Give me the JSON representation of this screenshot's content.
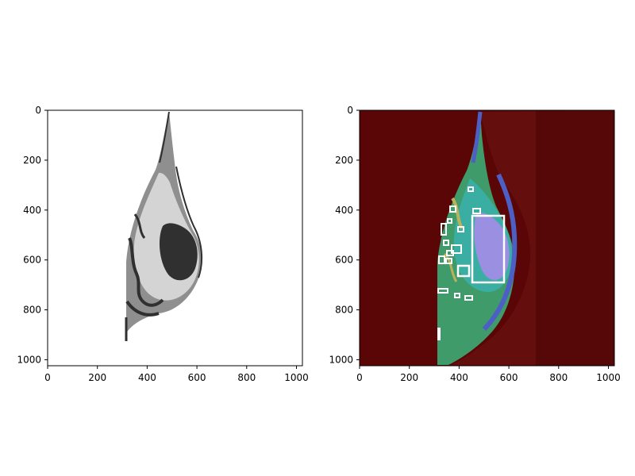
{
  "figure": {
    "background": "#ffffff",
    "panels": [
      {
        "id": "left",
        "content": "binary-segmentation-grayscale",
        "x_ticks": [
          "0",
          "200",
          "400",
          "600",
          "800",
          "1000"
        ],
        "y_ticks": [
          "0",
          "200",
          "400",
          "600",
          "800",
          "1000"
        ]
      },
      {
        "id": "right",
        "content": "overlay-heatmap-with-boxes",
        "x_ticks": [
          "0",
          "200",
          "400",
          "600",
          "800",
          "1000"
        ],
        "y_ticks": [
          "0",
          "200",
          "400",
          "600",
          "800",
          "1000"
        ]
      }
    ]
  },
  "colors": {
    "left_background": "#ffffff",
    "tissue_light": "#d4d4d4",
    "tissue_mid": "#8f8f8f",
    "tissue_dark": "#303030",
    "right_background": "#5a0606",
    "right_shadow": "#7a1f1f",
    "overlay_green": "#3f9b6a",
    "overlay_teal": "#3ab0a8",
    "overlay_blue": "#4d5fc4",
    "overlay_lilac": "#9a8fe0",
    "overlay_yellow": "#b8b35a",
    "box_stroke": "#ffffff"
  }
}
